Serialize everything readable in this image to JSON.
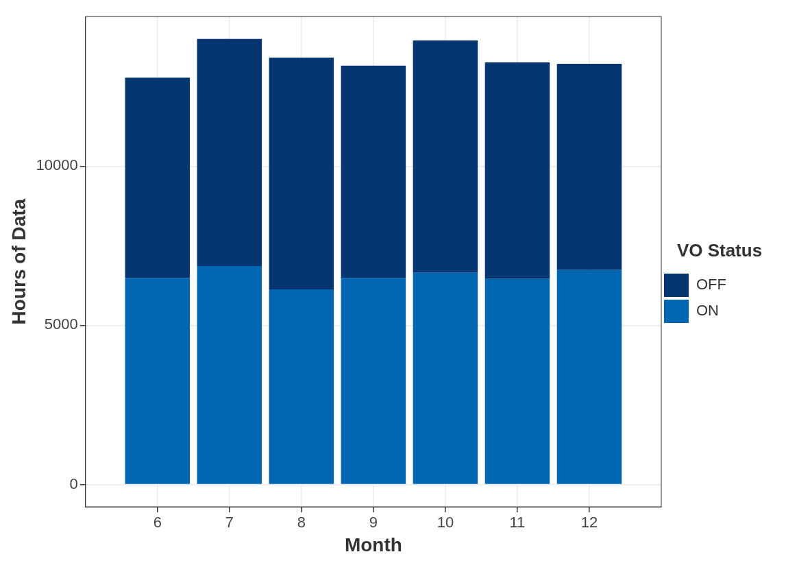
{
  "chart_data": {
    "type": "bar",
    "xlabel": "Month",
    "ylabel": "Hours of Data",
    "legend_title": "VO Status",
    "x": [
      6,
      7,
      8,
      9,
      10,
      11,
      12
    ],
    "stacked": true,
    "series": [
      {
        "name": "ON",
        "color": "#0066b2",
        "values": [
          6490,
          6860,
          6130,
          6490,
          6650,
          6460,
          6740
        ]
      },
      {
        "name": "OFF",
        "color": "#063672",
        "values": [
          6290,
          7140,
          7280,
          6670,
          7300,
          6800,
          6480
        ]
      }
    ],
    "xlim": [
      5,
      13
    ],
    "xticks": [
      6,
      7,
      8,
      9,
      10,
      11,
      12
    ],
    "ylim": [
      -700,
      14700
    ],
    "yticks": [
      0,
      5000,
      10000
    ],
    "grid": true,
    "legend": "right"
  }
}
